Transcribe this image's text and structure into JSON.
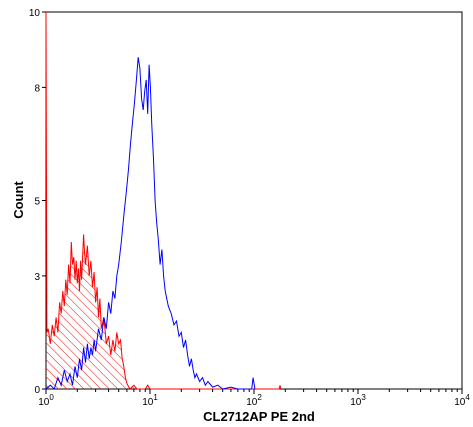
{
  "chart_data": {
    "type": "histogram",
    "xlabel": "CL2712AP PE 2nd",
    "ylabel": "Count",
    "x_scale": "log",
    "xlim": [
      1,
      10000
    ],
    "ylim": [
      0,
      10
    ],
    "y_ticks": [
      0,
      3,
      5,
      8,
      10
    ],
    "x_ticks": [
      {
        "value": 1,
        "base": "10",
        "exp": "0"
      },
      {
        "value": 10,
        "base": "10",
        "exp": "1"
      },
      {
        "value": 100,
        "base": "10",
        "exp": "2"
      },
      {
        "value": 1000,
        "base": "10",
        "exp": "3"
      },
      {
        "value": 10000,
        "base": "10",
        "exp": "4"
      }
    ],
    "grid": false,
    "series": [
      {
        "color": "#ff0000",
        "fill": "hatched",
        "points": [
          [
            1.0,
            10.0
          ],
          [
            1.02,
            1.5
          ],
          [
            1.05,
            1.6
          ],
          [
            1.1,
            1.2
          ],
          [
            1.15,
            1.7
          ],
          [
            1.2,
            1.4
          ],
          [
            1.25,
            1.9
          ],
          [
            1.3,
            1.5
          ],
          [
            1.35,
            2.3
          ],
          [
            1.4,
            2.0
          ],
          [
            1.45,
            2.6
          ],
          [
            1.5,
            2.2
          ],
          [
            1.55,
            2.9
          ],
          [
            1.6,
            2.5
          ],
          [
            1.65,
            3.3
          ],
          [
            1.7,
            2.8
          ],
          [
            1.75,
            3.9
          ],
          [
            1.8,
            3.3
          ],
          [
            1.85,
            3.5
          ],
          [
            1.9,
            2.9
          ],
          [
            1.95,
            3.4
          ],
          [
            2.0,
            2.8
          ],
          [
            2.05,
            3.2
          ],
          [
            2.1,
            2.6
          ],
          [
            2.15,
            3.4
          ],
          [
            2.2,
            2.9
          ],
          [
            2.3,
            4.1
          ],
          [
            2.35,
            3.6
          ],
          [
            2.4,
            3.3
          ],
          [
            2.5,
            3.8
          ],
          [
            2.6,
            3.0
          ],
          [
            2.7,
            3.4
          ],
          [
            2.8,
            2.7
          ],
          [
            2.9,
            3.1
          ],
          [
            3.0,
            2.3
          ],
          [
            3.1,
            2.7
          ],
          [
            3.2,
            1.9
          ],
          [
            3.3,
            2.4
          ],
          [
            3.4,
            1.6
          ],
          [
            3.6,
            1.9
          ],
          [
            3.8,
            1.2
          ],
          [
            4.0,
            1.4
          ],
          [
            4.2,
            0.9
          ],
          [
            4.4,
            1.3
          ],
          [
            4.6,
            1.0
          ],
          [
            4.8,
            1.5
          ],
          [
            5.0,
            1.2
          ],
          [
            5.2,
            1.3
          ],
          [
            5.4,
            0.8
          ],
          [
            5.6,
            0.6
          ],
          [
            5.8,
            0.3
          ],
          [
            6.0,
            0.15
          ],
          [
            6.4,
            0.0
          ],
          [
            7.0,
            0.1
          ],
          [
            7.5,
            0.0
          ],
          [
            9.0,
            0.0
          ],
          [
            9.5,
            0.1
          ],
          [
            10.0,
            0.0
          ],
          [
            175,
            0.0
          ],
          [
            178,
            0.1
          ],
          [
            181,
            0.0
          ]
        ]
      },
      {
        "color": "#0000ff",
        "fill": "none",
        "points": [
          [
            1.0,
            0.0
          ],
          [
            1.1,
            0.1
          ],
          [
            1.2,
            0.0
          ],
          [
            1.3,
            0.3
          ],
          [
            1.4,
            0.1
          ],
          [
            1.5,
            0.5
          ],
          [
            1.6,
            0.2
          ],
          [
            1.7,
            0.4
          ],
          [
            1.8,
            0.1
          ],
          [
            1.9,
            0.6
          ],
          [
            2.0,
            0.3
          ],
          [
            2.1,
            0.8
          ],
          [
            2.2,
            0.5
          ],
          [
            2.3,
            1.1
          ],
          [
            2.4,
            0.7
          ],
          [
            2.5,
            1.2
          ],
          [
            2.6,
            0.8
          ],
          [
            2.7,
            1.1
          ],
          [
            2.8,
            0.9
          ],
          [
            2.9,
            1.3
          ],
          [
            3.0,
            1.0
          ],
          [
            3.2,
            1.6
          ],
          [
            3.4,
            1.3
          ],
          [
            3.6,
            1.9
          ],
          [
            3.8,
            1.6
          ],
          [
            4.0,
            2.3
          ],
          [
            4.2,
            2.0
          ],
          [
            4.4,
            2.6
          ],
          [
            4.6,
            2.4
          ],
          [
            4.8,
            3.0
          ],
          [
            5.0,
            3.3
          ],
          [
            5.3,
            3.9
          ],
          [
            5.6,
            4.6
          ],
          [
            5.9,
            5.2
          ],
          [
            6.2,
            5.8
          ],
          [
            6.5,
            6.5
          ],
          [
            6.8,
            7.1
          ],
          [
            7.1,
            7.6
          ],
          [
            7.4,
            8.2
          ],
          [
            7.7,
            8.8
          ],
          [
            8.0,
            8.5
          ],
          [
            8.3,
            7.7
          ],
          [
            8.6,
            7.4
          ],
          [
            8.9,
            7.9
          ],
          [
            9.2,
            8.2
          ],
          [
            9.5,
            7.3
          ],
          [
            9.8,
            8.6
          ],
          [
            10.1,
            8.0
          ],
          [
            10.4,
            7.0
          ],
          [
            10.8,
            6.1
          ],
          [
            11.2,
            5.0
          ],
          [
            11.6,
            4.4
          ],
          [
            12.0,
            4.0
          ],
          [
            12.5,
            3.3
          ],
          [
            13.0,
            3.7
          ],
          [
            13.5,
            3.0
          ],
          [
            14.0,
            2.6
          ],
          [
            15.0,
            2.2
          ],
          [
            16.0,
            2.0
          ],
          [
            17.0,
            1.7
          ],
          [
            18.0,
            1.8
          ],
          [
            19.0,
            1.4
          ],
          [
            20.0,
            1.5
          ],
          [
            21.0,
            1.1
          ],
          [
            22.0,
            1.3
          ],
          [
            23.0,
            0.9
          ],
          [
            24.0,
            0.6
          ],
          [
            25.0,
            0.8
          ],
          [
            26.0,
            0.5
          ],
          [
            27.0,
            0.3
          ],
          [
            28.0,
            0.4
          ],
          [
            30.0,
            0.2
          ],
          [
            32.0,
            0.3
          ],
          [
            34.0,
            0.1
          ],
          [
            36.0,
            0.2
          ],
          [
            40.0,
            0.05
          ],
          [
            45.0,
            0.1
          ],
          [
            50.0,
            0.0
          ],
          [
            60.0,
            0.05
          ],
          [
            70.0,
            0.0
          ],
          [
            95.0,
            0.0
          ],
          [
            98.0,
            0.3
          ],
          [
            102.0,
            0.0
          ]
        ]
      }
    ]
  }
}
